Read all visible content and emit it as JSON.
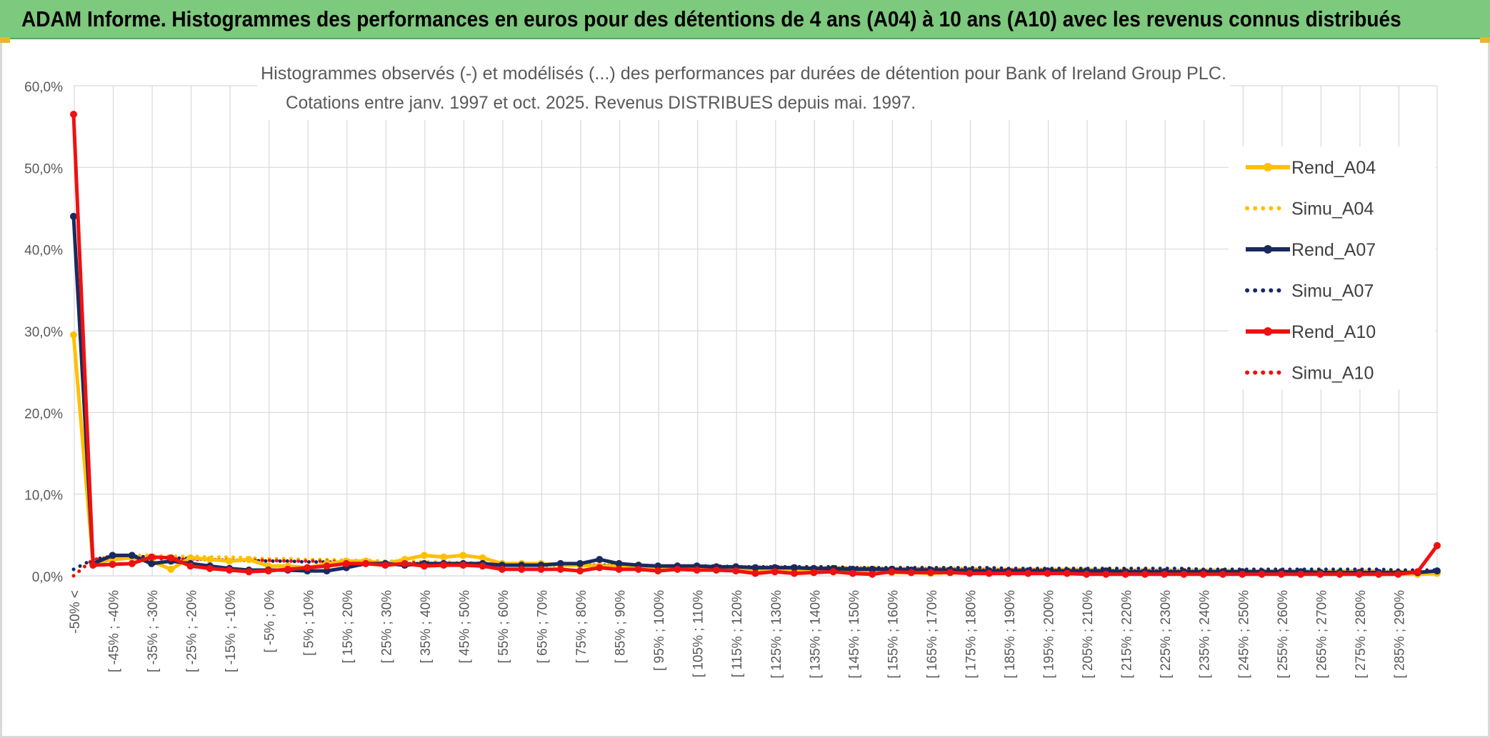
{
  "banner": {
    "title": "ADAM Informe. Histogrammes des performances en euros pour des détentions de 4 ans (A04) à 10 ans (A10) avec les revenus connus distribués"
  },
  "chart_data": {
    "type": "line",
    "title_line1": "Histogrammes observés (-) et modélisés (...) des performances par durées de détention pour Bank of Ireland Group PLC.",
    "title_line2": "Cotations entre janv. 1997 et oct. 2025. Revenus DISTRIBUES depuis mai. 1997.",
    "ylim": [
      0,
      60
    ],
    "yticks": [
      "0,0%",
      "10,0%",
      "20,0%",
      "30,0%",
      "40,0%",
      "50,0%",
      "60,0%"
    ],
    "grid": true,
    "legend_position": "right",
    "categories": [
      "-50% <",
      "[ -50% ; -45%",
      "[ -45% ; -40%",
      "[ -40% ; -35%",
      "[ -35% ; -30%",
      "[ -30% ; -25%",
      "[ -25% ; -20%",
      "[ -20% ; -15%",
      "[ -15% ; -10%",
      "[ -10% ; -5%",
      "[ -5% ; 0%",
      "[ 0% ; 5%",
      "[ 5% ; 10%",
      "[ 10% ; 15%",
      "[ 15% ; 20%",
      "[ 20% ; 25%",
      "[ 25% ; 30%",
      "[ 30% ; 35%",
      "[ 35% ; 40%",
      "[ 40% ; 45%",
      "[ 45% ; 50%",
      "[ 50% ; 55%",
      "[ 55% ; 60%",
      "[ 60% ; 65%",
      "[ 65% ; 70%",
      "[ 70% ; 75%",
      "[ 75% ; 80%",
      "[ 80% ; 85%",
      "[ 85% ; 90%",
      "[ 90% ; 95%",
      "[ 95% ; 100%",
      "[ 100% ; 105%",
      "[ 105% ; 110%",
      "[ 110% ; 115%",
      "[ 115% ; 120%",
      "[ 120% ; 125%",
      "[ 125% ; 130%",
      "[ 130% ; 135%",
      "[ 135% ; 140%",
      "[ 140% ; 145%",
      "[ 145% ; 150%",
      "[ 150% ; 155%",
      "[ 155% ; 160%",
      "[ 160% ; 165%",
      "[ 165% ; 170%",
      "[ 170% ; 175%",
      "[ 175% ; 180%",
      "[ 180% ; 185%",
      "[ 185% ; 190%",
      "[ 190% ; 195%",
      "[ 195% ; 200%",
      "[ 200% ; 205%",
      "[ 205% ; 210%",
      "[ 210% ; 215%",
      "[ 215% ; 220%",
      "[ 220% ; 225%",
      "[ 225% ; 230%",
      "[ 230% ; 235%",
      "[ 235% ; 240%",
      "[ 240% ; 245%",
      "[ 245% ; 250%",
      "[ 250% ; 255%",
      "[ 255% ; 260%",
      "[ 260% ; 265%",
      "[ 265% ; 270%",
      "[ 270% ; 275%",
      "[ 275% ; 280%",
      "[ 280% ; 285%",
      "[ 285% ; 290%",
      "[ 290% ; 295%",
      "295% >"
    ],
    "visible_tick_labels": [
      "-50% <",
      "[ -45% ; -40%",
      "[ -35% ; -30%",
      "[ -25% ; -20%",
      "[ -15% ; -10%",
      "[ -5% ; 0%",
      "[ 5% ; 10%",
      "[ 15% ; 20%",
      "[ 25% ; 30%",
      "[ 35% ; 40%",
      "[ 45% ; 50%",
      "[ 55% ; 60%",
      "[ 65% ; 70%",
      "[ 75% ; 80%",
      "[ 85% ; 90%",
      "[ 95% ; 100%",
      "[ 105% ; 110%",
      "[ 115% ; 120%",
      "[ 125% ; 130%",
      "[ 135% ; 140%",
      "[ 145% ; 150%",
      "[ 155% ; 160%",
      "[ 165% ; 170%",
      "[ 175% ; 180%",
      "[ 185% ; 190%",
      "[ 195% ; 200%",
      "[ 205% ; 210%",
      "[ 215% ; 220%",
      "[ 225% ; 230%",
      "[ 235% ; 240%",
      "[ 245% ; 250%",
      "[ 255% ; 260%",
      "[ 265% ; 270%",
      "[ 275% ; 280%",
      "[ 285% ; 290%"
    ],
    "series": [
      {
        "name": "Rend_A04",
        "color": "#ffc000",
        "style": "solid",
        "values": [
          29.5,
          1.5,
          2.0,
          2.2,
          1.8,
          0.8,
          2.2,
          2.0,
          1.8,
          2.0,
          1.2,
          1.2,
          1.0,
          1.5,
          1.8,
          1.8,
          1.5,
          2.0,
          2.5,
          2.3,
          2.5,
          2.2,
          1.5,
          1.5,
          1.5,
          1.3,
          1.3,
          1.2,
          1.2,
          1.0,
          1.0,
          1.0,
          0.8,
          0.8,
          0.8,
          0.8,
          0.7,
          0.6,
          0.6,
          0.6,
          0.5,
          0.5,
          0.4,
          0.4,
          0.3,
          0.4,
          0.4,
          0.4,
          0.3,
          0.3,
          0.3,
          0.3,
          0.3,
          0.3,
          0.3,
          0.3,
          0.3,
          0.3,
          0.3,
          0.3,
          0.3,
          0.3,
          0.3,
          0.3,
          0.3,
          0.3,
          0.2,
          0.2,
          0.2,
          0.2,
          0.3
        ]
      },
      {
        "name": "Simu_A04",
        "color": "#ffc000",
        "style": "dotted",
        "values": [
          0.0,
          2.0,
          2.4,
          2.5,
          2.5,
          2.4,
          2.4,
          2.3,
          2.3,
          2.2,
          2.1,
          2.1,
          2.0,
          2.0,
          1.9,
          1.9,
          1.8,
          1.8,
          1.7,
          1.7,
          1.6,
          1.6,
          1.5,
          1.5,
          1.5,
          1.4,
          1.4,
          1.3,
          1.3,
          1.3,
          1.2,
          1.2,
          1.2,
          1.1,
          1.1,
          1.1,
          1.1,
          1.0,
          1.0,
          1.0,
          1.0,
          1.0,
          0.9,
          0.9,
          0.9,
          0.9,
          0.9,
          0.8,
          0.8,
          0.8,
          0.8,
          0.8,
          0.8,
          0.7,
          0.7,
          0.7,
          0.7,
          0.7,
          0.7,
          0.7,
          0.6,
          0.6,
          0.6,
          0.6,
          0.6,
          0.6,
          0.6,
          0.6,
          0.5,
          0.5,
          0.5
        ]
      },
      {
        "name": "Rend_A07",
        "color": "#1a2a5e",
        "style": "solid",
        "values": [
          44.0,
          1.5,
          2.5,
          2.5,
          1.5,
          1.8,
          1.5,
          1.2,
          0.9,
          0.7,
          0.7,
          0.7,
          0.6,
          0.6,
          1.0,
          1.5,
          1.5,
          1.3,
          1.5,
          1.5,
          1.5,
          1.5,
          1.3,
          1.3,
          1.3,
          1.5,
          1.5,
          2.0,
          1.5,
          1.3,
          1.2,
          1.2,
          1.2,
          1.1,
          1.1,
          1.0,
          1.0,
          1.0,
          0.9,
          0.9,
          0.8,
          0.8,
          0.8,
          0.7,
          0.7,
          0.7,
          0.6,
          0.6,
          0.6,
          0.6,
          0.6,
          0.6,
          0.6,
          0.6,
          0.5,
          0.5,
          0.5,
          0.5,
          0.5,
          0.5,
          0.5,
          0.5,
          0.5,
          0.5,
          0.4,
          0.4,
          0.4,
          0.4,
          0.4,
          0.4,
          0.6
        ]
      },
      {
        "name": "Simu_A07",
        "color": "#1a2a5e",
        "style": "dotted",
        "values": [
          0.8,
          2.0,
          2.4,
          2.4,
          2.3,
          2.2,
          2.1,
          2.0,
          1.9,
          1.9,
          1.8,
          1.8,
          1.7,
          1.7,
          1.6,
          1.6,
          1.6,
          1.5,
          1.5,
          1.5,
          1.4,
          1.4,
          1.4,
          1.4,
          1.3,
          1.3,
          1.3,
          1.3,
          1.3,
          1.2,
          1.2,
          1.2,
          1.2,
          1.2,
          1.1,
          1.1,
          1.1,
          1.1,
          1.1,
          1.1,
          1.0,
          1.0,
          1.0,
          1.0,
          1.0,
          1.0,
          1.0,
          1.0,
          0.9,
          0.9,
          0.9,
          0.9,
          0.9,
          0.9,
          0.9,
          0.9,
          0.9,
          0.9,
          0.8,
          0.8,
          0.8,
          0.8,
          0.8,
          0.8,
          0.8,
          0.8,
          0.8,
          0.8,
          0.7,
          0.7,
          0.7
        ]
      },
      {
        "name": "Rend_A10",
        "color": "#ee1111",
        "style": "solid",
        "values": [
          56.5,
          1.3,
          1.4,
          1.5,
          2.3,
          2.2,
          1.2,
          0.9,
          0.7,
          0.5,
          0.6,
          0.8,
          1.0,
          1.2,
          1.5,
          1.5,
          1.3,
          1.5,
          1.2,
          1.3,
          1.3,
          1.2,
          0.8,
          0.8,
          0.8,
          0.8,
          0.6,
          1.0,
          0.8,
          0.8,
          0.6,
          0.8,
          0.7,
          0.7,
          0.6,
          0.3,
          0.5,
          0.3,
          0.4,
          0.5,
          0.3,
          0.2,
          0.5,
          0.4,
          0.4,
          0.4,
          0.3,
          0.3,
          0.3,
          0.3,
          0.3,
          0.3,
          0.2,
          0.2,
          0.2,
          0.2,
          0.2,
          0.2,
          0.2,
          0.2,
          0.2,
          0.2,
          0.2,
          0.2,
          0.2,
          0.2,
          0.2,
          0.2,
          0.2,
          0.5,
          3.7
        ]
      },
      {
        "name": "Simu_A10",
        "color": "#ee1111",
        "style": "dotted",
        "values": [
          0.0,
          2.0,
          2.2,
          2.2,
          2.1,
          2.1,
          2.0,
          2.0,
          1.9,
          1.9,
          1.9,
          1.8,
          1.8,
          1.8,
          1.7,
          1.7,
          1.6,
          1.6,
          1.6,
          1.5,
          1.5,
          1.5,
          1.4,
          1.4,
          1.4,
          1.3,
          1.3,
          1.3,
          1.2,
          1.2,
          1.2,
          1.1,
          1.1,
          1.1,
          1.0,
          1.0,
          1.0,
          1.0,
          0.9,
          0.9,
          0.9,
          0.9,
          0.8,
          0.8,
          0.8,
          0.8,
          0.7,
          0.7,
          0.7,
          0.7,
          0.7,
          0.6,
          0.6,
          0.6,
          0.6,
          0.6,
          0.6,
          0.5,
          0.5,
          0.5,
          0.5,
          0.5,
          0.5,
          0.4,
          0.4,
          0.4,
          0.4,
          0.4,
          0.3,
          0.3,
          0.3
        ]
      }
    ]
  }
}
